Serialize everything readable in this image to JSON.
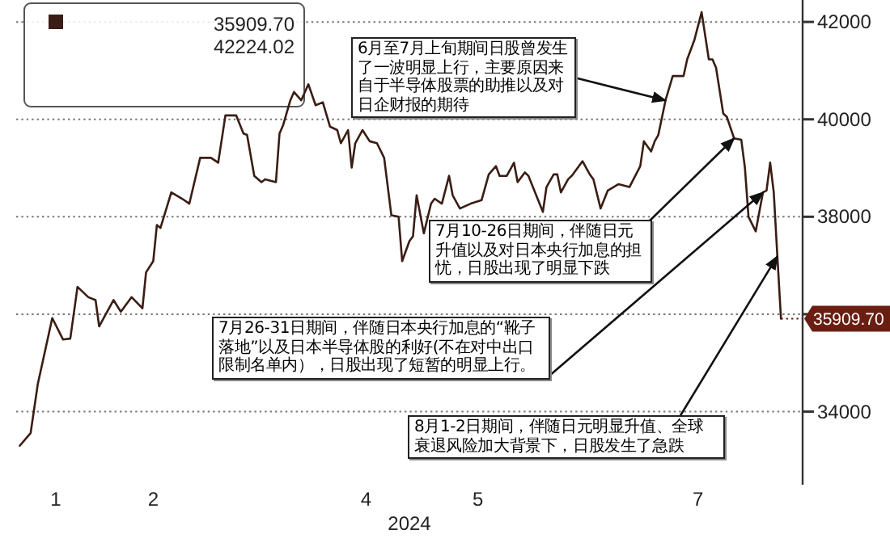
{
  "chart_data": {
    "type": "line",
    "xlabel": "2024",
    "x": [
      "2024-01-04",
      "2024-01-07",
      "2024-01-09",
      "2024-01-13",
      "2024-01-16",
      "2024-01-18",
      "2024-01-20",
      "2024-01-23",
      "2024-01-25",
      "2024-01-26",
      "2024-01-28",
      "2024-01-30",
      "2024-02-01",
      "2024-02-04",
      "2024-02-07",
      "2024-02-08",
      "2024-02-10",
      "2024-02-11",
      "2024-02-12",
      "2024-02-15",
      "2024-02-18",
      "2024-02-20",
      "2024-02-23",
      "2024-02-26",
      "2024-02-28",
      "2024-03-01",
      "2024-03-04",
      "2024-03-06",
      "2024-03-07",
      "2024-03-09",
      "2024-03-11",
      "2024-03-12",
      "2024-03-15",
      "2024-03-16",
      "2024-03-17",
      "2024-03-19",
      "2024-03-20",
      "2024-03-22",
      "2024-03-24",
      "2024-03-26",
      "2024-03-28",
      "2024-03-30",
      "2024-04-01",
      "2024-04-02",
      "2024-04-04",
      "2024-04-05",
      "2024-04-06",
      "2024-04-08",
      "2024-04-10",
      "2024-04-12",
      "2024-04-14",
      "2024-04-16",
      "2024-04-18",
      "2024-04-19",
      "2024-04-21",
      "2024-04-22",
      "2024-04-23",
      "2024-04-25",
      "2024-04-27",
      "2024-04-28",
      "2024-04-30",
      "2024-05-02",
      "2024-05-03",
      "2024-05-05",
      "2024-05-08",
      "2024-05-11",
      "2024-05-13",
      "2024-05-15",
      "2024-05-16",
      "2024-05-18",
      "2024-05-20",
      "2024-05-21",
      "2024-05-23",
      "2024-05-24",
      "2024-05-28",
      "2024-05-29",
      "2024-05-31",
      "2024-06-01",
      "2024-06-02",
      "2024-06-04",
      "2024-06-05",
      "2024-06-08",
      "2024-06-10",
      "2024-06-11",
      "2024-06-13",
      "2024-06-15",
      "2024-06-18",
      "2024-06-21",
      "2024-06-24",
      "2024-06-25",
      "2024-06-27",
      "2024-06-28",
      "2024-06-29",
      "2024-07-01",
      "2024-07-03",
      "2024-07-06",
      "2024-07-07",
      "2024-07-09",
      "2024-07-11",
      "2024-07-13",
      "2024-07-14",
      "2024-07-15",
      "2024-07-17",
      "2024-07-18",
      "2024-07-20",
      "2024-07-22",
      "2024-07-23",
      "2024-07-24",
      "2024-07-26",
      "2024-07-28",
      "2024-07-29",
      "2024-07-30",
      "2024-07-31",
      "2024-08-01",
      "2024-08-02"
    ],
    "series": [
      {
        "color": "#3a1d14",
        "values": [
          33300,
          33560,
          34570,
          35920,
          35480,
          35500,
          36560,
          36350,
          36290,
          35750,
          36020,
          36290,
          36050,
          36350,
          36120,
          36860,
          37090,
          37830,
          37770,
          38500,
          38370,
          38270,
          39210,
          39210,
          39110,
          40080,
          40080,
          39710,
          39680,
          38840,
          38710,
          38770,
          38710,
          39710,
          39880,
          40390,
          40560,
          40390,
          40720,
          40290,
          40350,
          39850,
          39780,
          39510,
          39780,
          39010,
          39510,
          39780,
          39550,
          39510,
          39210,
          38030,
          38000,
          37090,
          37500,
          37600,
          38440,
          37660,
          38270,
          38370,
          38270,
          38840,
          38440,
          38170,
          38270,
          38340,
          38870,
          39040,
          38840,
          38840,
          39110,
          38710,
          38910,
          38840,
          38100,
          38610,
          38870,
          38870,
          38500,
          38770,
          38840,
          39140,
          38870,
          38770,
          38170,
          38540,
          38670,
          38610,
          39040,
          39550,
          39340,
          39550,
          39680,
          40390,
          40890,
          40890,
          41230,
          41630,
          42200,
          41230,
          41230,
          41060,
          40120,
          40050,
          39610,
          39580,
          39010,
          38000,
          37700,
          38500,
          38540,
          39110,
          38500,
          37190,
          35909.7
        ]
      }
    ],
    "xlim": [
      "2024-01-03",
      "2024-08-08"
    ],
    "xticks": [
      {
        "value": "2024-01-14",
        "label": "1"
      },
      {
        "value": "2024-02-10",
        "label": "2"
      },
      {
        "value": "2024-04-09",
        "label": "4"
      },
      {
        "value": "2024-05-10",
        "label": "5"
      },
      {
        "value": "2024-07-10",
        "label": "7"
      }
    ],
    "ylim": [
      32500,
      42450
    ],
    "yticks": [
      34000,
      {
        "value": 36000,
        "label": null
      },
      38000,
      40000,
      42000
    ],
    "grid": "y",
    "annotations": [
      {
        "text": "6月至7月上旬期间日股曾发生了一波明显上行，主要原因来自于半导体股票的助推以及对日企财报的期待",
        "x": "2024-07-01",
        "y": 40390
      },
      {
        "text": "7月10-26日期间，伴随日元升值以及对日本央行加息的担忧，日股出现了明显下跌",
        "x": "2024-07-20",
        "y": 39610
      },
      {
        "text": "7月26-31日期间，伴随日本央行加息的“靴子落地”以及日本半导体股的利好(不在对中出口限制名单内），日股出现了短暂的明显上行。",
        "x": "2024-07-28",
        "y": 38500
      },
      {
        "text": "8月1-2日期间，伴随日元明显升值、全球衰退风险加大背景下，日股发生了急跌",
        "x": "2024-08-01",
        "y": 37190
      },
      "35909.70",
      "42224.02",
      {
        "text": "35909.70",
        "x": "2024-08-02",
        "y": 35909.7
      }
    ]
  }
}
